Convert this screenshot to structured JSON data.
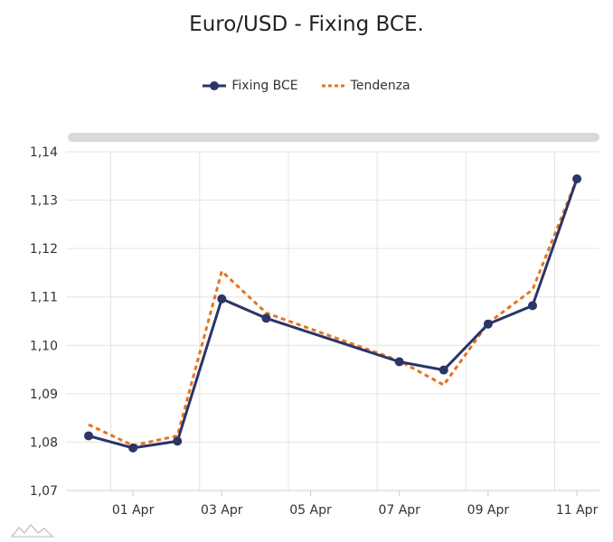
{
  "chart_data": {
    "type": "line",
    "title": "Euro/USD - Fixing BCE.",
    "xlabel": "",
    "ylabel": "",
    "x_tick_labels": [
      "01 Apr",
      "03 Apr",
      "05 Apr",
      "07 Apr",
      "09 Apr",
      "11 Apr"
    ],
    "y_tick_labels": [
      "1,07",
      "1,08",
      "1,09",
      "1,10",
      "1,11",
      "1,12",
      "1,13",
      "1,14"
    ],
    "ylim": [
      1.07,
      1.14
    ],
    "xlim": [
      "2019-03-31",
      "2019-04-11"
    ],
    "grid": true,
    "legend_position": "top-center",
    "series": [
      {
        "name": "Fixing BCE",
        "color": "#2b3566",
        "style": "solid-with-markers",
        "points": [
          {
            "x": "2019-03-31",
            "y": 1.0813
          },
          {
            "x": "2019-04-01",
            "y": 1.0788
          },
          {
            "x": "2019-04-02",
            "y": 1.0802
          },
          {
            "x": "2019-04-03",
            "y": 1.1096
          },
          {
            "x": "2019-04-04",
            "y": 1.1056
          },
          {
            "x": "2019-04-07",
            "y": 1.0966
          },
          {
            "x": "2019-04-08",
            "y": 1.0949
          },
          {
            "x": "2019-04-09",
            "y": 1.1044
          },
          {
            "x": "2019-04-10",
            "y": 1.1082
          },
          {
            "x": "2019-04-11",
            "y": 1.1344
          }
        ]
      },
      {
        "name": "Tendenza",
        "color": "#e8731e",
        "style": "dotted",
        "points": [
          {
            "x": "2019-03-31",
            "y": 1.0836
          },
          {
            "x": "2019-04-01",
            "y": 1.0793
          },
          {
            "x": "2019-04-02",
            "y": 1.0813
          },
          {
            "x": "2019-04-03",
            "y": 1.1153
          },
          {
            "x": "2019-04-04",
            "y": 1.1067
          },
          {
            "x": "2019-04-07",
            "y": 1.0968
          },
          {
            "x": "2019-04-08",
            "y": 1.0918
          },
          {
            "x": "2019-04-09",
            "y": 1.1046
          },
          {
            "x": "2019-04-10",
            "y": 1.1115
          },
          {
            "x": "2019-04-11",
            "y": 1.1344
          }
        ]
      }
    ]
  }
}
